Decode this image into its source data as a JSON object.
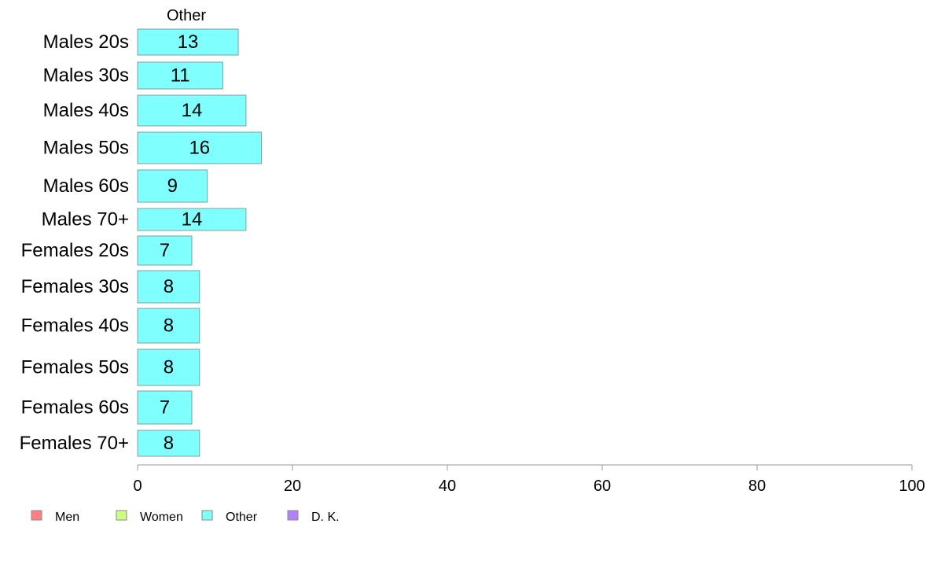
{
  "chart_data": {
    "type": "bar",
    "orientation": "horizontal",
    "panel_title": "Other",
    "categories": [
      "Males 20s",
      "Males 30s",
      "Males 40s",
      "Males 50s",
      "Males 60s",
      "Males 70+",
      "Females 20s",
      "Females 30s",
      "Females 40s",
      "Females 50s",
      "Females 60s",
      "Females 70+"
    ],
    "series": [
      {
        "name": "Other",
        "color": "#80ffff",
        "values": [
          13,
          11,
          14,
          16,
          9,
          14,
          7,
          8,
          8,
          8,
          7,
          8
        ],
        "labels": [
          "13",
          "11",
          "14",
          "16",
          "9",
          "14",
          "7",
          "8",
          "8",
          "8",
          "7",
          "8"
        ]
      }
    ],
    "xlim": [
      0,
      100
    ],
    "xticks": [
      0,
      20,
      40,
      60,
      80,
      100
    ],
    "xtick_labels": [
      "0",
      "20",
      "40",
      "60",
      "80",
      "100"
    ],
    "grid": false,
    "legend": {
      "placement": "bottom-left",
      "entries": [
        {
          "label": "Men",
          "color": "#ff8080"
        },
        {
          "label": "Women",
          "color": "#ccff80"
        },
        {
          "label": "Other",
          "color": "#80ffff"
        },
        {
          "label": "D. K.",
          "color": "#b380ff"
        }
      ]
    }
  }
}
